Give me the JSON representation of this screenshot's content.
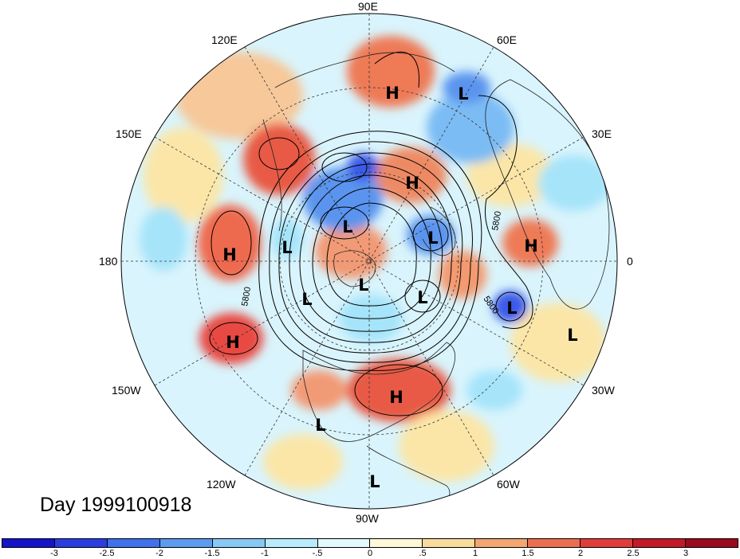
{
  "title": "Day 1999100918",
  "longitude_labels": {
    "lon_0": "0",
    "lon_30e": "30E",
    "lon_60e": "60E",
    "lon_90e": "90E",
    "lon_120e": "120E",
    "lon_150e": "150E",
    "lon_180": "180",
    "lon_150w": "150W",
    "lon_120w": "120W",
    "lon_90w": "90W",
    "lon_60w": "60W",
    "lon_30w": "30W"
  },
  "contour_labels": [
    "5800",
    "5800",
    "5800"
  ],
  "pressure_centers": [
    {
      "label": "H"
    },
    {
      "label": "L"
    },
    {
      "label": "H"
    },
    {
      "label": "L"
    },
    {
      "label": "L"
    },
    {
      "label": "L"
    },
    {
      "label": "H"
    },
    {
      "label": "H"
    },
    {
      "label": "L"
    },
    {
      "label": "L"
    },
    {
      "label": "L"
    },
    {
      "label": "L"
    },
    {
      "label": "L"
    },
    {
      "label": "H"
    },
    {
      "label": "H"
    },
    {
      "label": "L"
    },
    {
      "label": "L"
    }
  ],
  "colorbar": {
    "ticks": [
      "-3",
      "-2.5",
      "-2",
      "-1.5",
      "-1",
      "-.5",
      "0",
      ".5",
      "1",
      "1.5",
      "2",
      "2.5",
      "3"
    ],
    "colors": [
      "#1a1ad6",
      "#3a5ae8",
      "#5a94ee",
      "#7cbcf4",
      "#a6e4fa",
      "#d4f6fc",
      "#fff8d6",
      "#fbe6a8",
      "#f6b27c",
      "#ee7a56",
      "#e84a42",
      "#d2202c",
      "#a40e20"
    ]
  }
}
